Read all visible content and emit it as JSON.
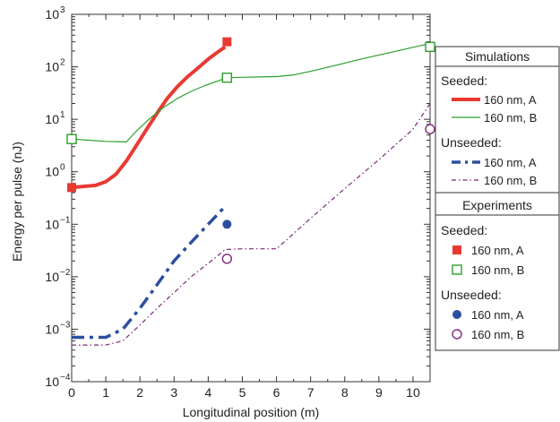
{
  "chart_data": {
    "type": "line",
    "xlabel": "Longitudinal position (m)",
    "ylabel": "Energy per pulse (nJ)",
    "x_ticks": [
      "0",
      "1",
      "2",
      "3",
      "4",
      "5",
      "6",
      "7",
      "8",
      "9",
      "10"
    ],
    "y_ticks": [
      {
        "base": "10",
        "exp": "−4"
      },
      {
        "base": "10",
        "exp": "−3"
      },
      {
        "base": "10",
        "exp": "−2"
      },
      {
        "base": "10",
        "exp": "−1"
      },
      {
        "base": "10",
        "exp": "0"
      },
      {
        "base": "10",
        "exp": "1"
      },
      {
        "base": "10",
        "exp": "2"
      },
      {
        "base": "10",
        "exp": "3"
      }
    ],
    "xlim": [
      0,
      10.5
    ],
    "ylim": [
      0.0001,
      1000
    ],
    "y_scale": "log",
    "grid": false,
    "legend_position": "right",
    "colors": {
      "red": "#e83a33",
      "green": "#2ca02c",
      "blue": "#2c4fa0",
      "purple": "#7a2a7a"
    },
    "simulations": [
      {
        "name": "160 nm, A",
        "group": "Seeded",
        "color": "#e83a33",
        "style": "solid-thick",
        "x": [
          0,
          0.3,
          0.7,
          1.0,
          1.3,
          1.6,
          1.9,
          2.2,
          2.5,
          2.8,
          3.1,
          3.4,
          3.7,
          4.0,
          4.25,
          4.5
        ],
        "y": [
          0.5,
          0.52,
          0.55,
          0.65,
          0.9,
          1.6,
          3.2,
          6.5,
          13,
          25,
          42,
          65,
          95,
          140,
          185,
          240
        ]
      },
      {
        "name": "160 nm, B",
        "group": "Seeded",
        "color": "#2ca02c",
        "style": "solid-thin",
        "x": [
          0,
          0.5,
          1.0,
          1.6,
          1.9,
          2.3,
          2.7,
          3.1,
          3.5,
          3.9,
          4.3,
          4.55,
          5.0,
          5.5,
          6.0,
          6.5,
          7.0,
          7.5,
          8.0,
          8.5,
          9.0,
          9.5,
          10.0,
          10.5
        ],
        "y": [
          4.2,
          4.0,
          3.8,
          3.7,
          6,
          10.5,
          17,
          25,
          34,
          44,
          54,
          62,
          63,
          64,
          65,
          70,
          82,
          98,
          118,
          142,
          168,
          198,
          235,
          278
        ]
      },
      {
        "name": "160 nm, A",
        "group": "Unseeded",
        "color": "#2c4fa0",
        "style": "dashdot-thick",
        "x": [
          0,
          0.5,
          1.0,
          1.5,
          2.0,
          2.5,
          3.0,
          3.5,
          4.0,
          4.5
        ],
        "y": [
          0.0007,
          0.0007,
          0.0007,
          0.001,
          0.0025,
          0.007,
          0.02,
          0.045,
          0.1,
          0.22
        ]
      },
      {
        "name": "160 nm, B",
        "group": "Unseeded",
        "color": "#7a2a7a",
        "style": "dashdot-thin",
        "x": [
          0,
          0.5,
          1.0,
          1.5,
          2.0,
          2.5,
          3.0,
          3.5,
          4.0,
          4.5,
          5.0,
          5.5,
          6.0,
          7.0,
          8.0,
          9.0,
          10.0,
          10.5
        ],
        "y": [
          0.0005,
          0.0005,
          0.0005,
          0.0006,
          0.0012,
          0.0025,
          0.005,
          0.01,
          0.018,
          0.033,
          0.034,
          0.034,
          0.034,
          0.13,
          0.48,
          1.7,
          6.5,
          20
        ]
      }
    ],
    "experiments": [
      {
        "name": "160 nm, A",
        "group": "Seeded",
        "color": "#e83a33",
        "marker": "square-filled",
        "x": [
          0,
          4.55
        ],
        "y": [
          0.5,
          300
        ]
      },
      {
        "name": "160 nm, B",
        "group": "Seeded",
        "color": "#2ca02c",
        "marker": "square-open",
        "x": [
          0,
          4.55,
          10.5
        ],
        "y": [
          4.2,
          62,
          240
        ]
      },
      {
        "name": "160 nm, A",
        "group": "Unseeded",
        "color": "#2c4fa0",
        "marker": "circle-filled",
        "x": [
          4.55
        ],
        "y": [
          0.1
        ]
      },
      {
        "name": "160 nm, B",
        "group": "Unseeded",
        "color": "#7a2a7a",
        "marker": "circle-open",
        "x": [
          4.55,
          10.5
        ],
        "y": [
          0.022,
          6.5
        ]
      }
    ],
    "legend": {
      "sim_title": "Simulations",
      "exp_title": "Experiments",
      "seeded_label": "Seeded:",
      "unseeded_label": "Unseeded:",
      "entry_label": "160 nm, A",
      "entry_label_b": "160 nm, B"
    }
  }
}
